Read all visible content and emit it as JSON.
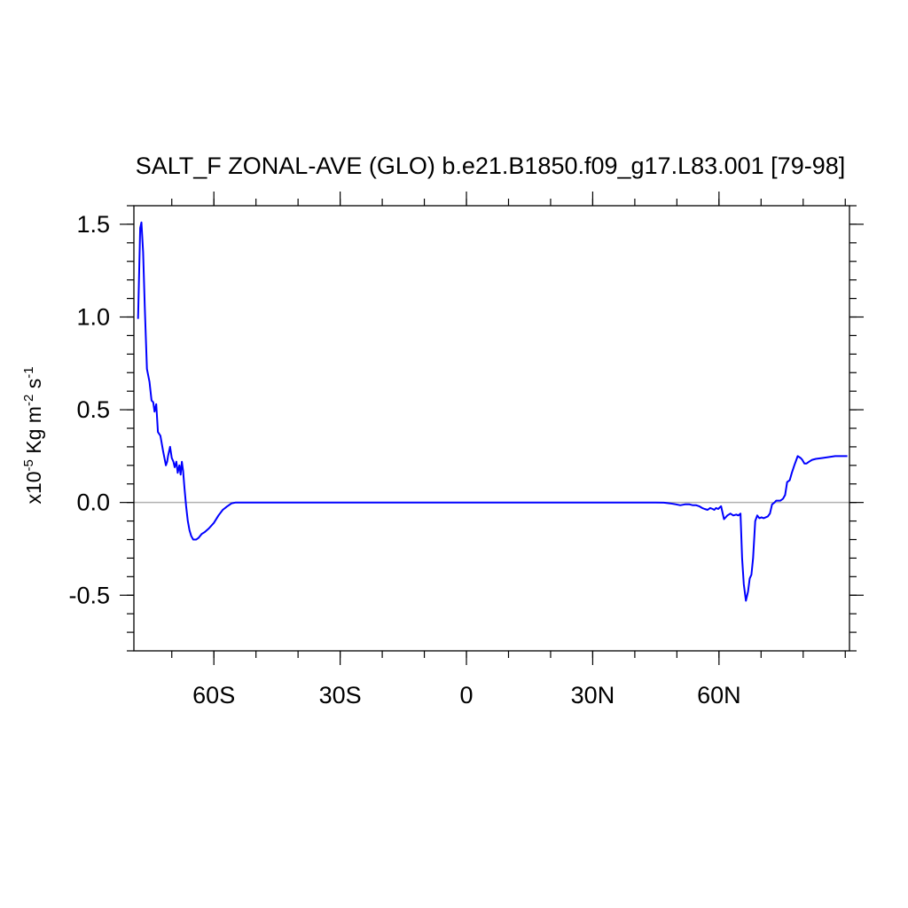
{
  "chart_data": {
    "type": "line",
    "title": "SALT_F ZONAL-AVE (GLO) b.e21.B1850.f09_g17.L83.001 [79-98]",
    "ylabel": {
      "base": "x10",
      "exp": "-5",
      "unit_a": " Kg m",
      "unit_a_exp": "-2",
      "unit_b": " s",
      "unit_b_exp": "-1"
    },
    "xlim": [
      -79,
      91
    ],
    "ylim": [
      -0.8,
      1.6
    ],
    "x_ticks": [
      {
        "value": -60,
        "label": "60S"
      },
      {
        "value": -30,
        "label": "30S"
      },
      {
        "value": 0,
        "label": "0"
      },
      {
        "value": 30,
        "label": "30N"
      },
      {
        "value": 60,
        "label": "60N"
      }
    ],
    "x_minor_step": 10,
    "y_ticks": [
      {
        "value": 1.5,
        "label": "1.5"
      },
      {
        "value": 1.0,
        "label": "1.0"
      },
      {
        "value": 0.5,
        "label": "0.5"
      },
      {
        "value": 0.0,
        "label": "0.0"
      },
      {
        "value": -0.5,
        "label": "-0.5"
      }
    ],
    "y_minor_step": 0.1,
    "zero_line": true,
    "grid": false,
    "series": [
      {
        "color": "#0000ff",
        "x": [
          -78.0,
          -77.5,
          -77.2,
          -76.8,
          -76.4,
          -75.9,
          -75.3,
          -74.8,
          -74.4,
          -74.1,
          -73.7,
          -73.3,
          -72.7,
          -72.1,
          -71.4,
          -71.1,
          -70.9,
          -70.4,
          -70.0,
          -69.6,
          -69.3,
          -68.9,
          -68.6,
          -68.2,
          -67.9,
          -67.6,
          -67.3,
          -67.0,
          -66.6,
          -66.2,
          -65.8,
          -65.4,
          -64.9,
          -64.2,
          -63.6,
          -62.9,
          -62.2,
          -61.2,
          -60.0,
          -58.9,
          -57.9,
          -56.8,
          -55.8,
          -54.8,
          -53.9,
          -52.7,
          -51.6,
          -50.0,
          -45.0,
          -30.0,
          -15.0,
          0.0,
          15.0,
          30.0,
          45.0,
          46.9,
          48.4,
          49.8,
          50.8,
          51.9,
          53.0,
          53.8,
          54.6,
          55.3,
          56.0,
          56.6,
          57.3,
          57.9,
          58.5,
          58.9,
          59.3,
          59.8,
          60.5,
          61.2,
          62.0,
          62.7,
          63.4,
          64.1,
          64.6,
          65.1,
          65.5,
          65.9,
          66.4,
          66.9,
          67.3,
          67.7,
          68.1,
          68.6,
          69.1,
          69.6,
          70.1,
          70.6,
          71.1,
          71.6,
          72.1,
          72.6,
          73.2,
          73.6,
          74.1,
          74.6,
          75.2,
          75.7,
          76.2,
          76.8,
          77.3,
          77.9,
          78.7,
          79.4,
          79.8,
          80.3,
          80.8,
          81.4,
          82.1,
          83.0,
          84.6,
          86.2,
          87.6,
          89.0,
          90.5
        ],
        "y": [
          0.99,
          1.48,
          1.51,
          1.35,
          1.05,
          0.72,
          0.65,
          0.55,
          0.54,
          0.49,
          0.53,
          0.38,
          0.36,
          0.28,
          0.2,
          0.22,
          0.25,
          0.3,
          0.24,
          0.22,
          0.19,
          0.22,
          0.16,
          0.2,
          0.15,
          0.22,
          0.17,
          0.08,
          -0.02,
          -0.1,
          -0.15,
          -0.18,
          -0.2,
          -0.2,
          -0.19,
          -0.17,
          -0.16,
          -0.14,
          -0.11,
          -0.07,
          -0.04,
          -0.02,
          -0.005,
          0.0,
          0.0,
          0.0,
          0.0,
          0.0,
          0.0,
          0.0,
          0.0,
          0.0,
          0.0,
          0.0,
          0.0,
          -0.001,
          -0.005,
          -0.01,
          -0.015,
          -0.01,
          -0.01,
          -0.015,
          -0.015,
          -0.02,
          -0.03,
          -0.035,
          -0.04,
          -0.03,
          -0.035,
          -0.04,
          -0.03,
          -0.035,
          -0.02,
          -0.09,
          -0.07,
          -0.06,
          -0.07,
          -0.065,
          -0.07,
          -0.06,
          -0.3,
          -0.44,
          -0.53,
          -0.48,
          -0.41,
          -0.39,
          -0.3,
          -0.1,
          -0.07,
          -0.085,
          -0.08,
          -0.085,
          -0.08,
          -0.075,
          -0.06,
          -0.01,
          0.0,
          0.01,
          0.01,
          0.01,
          0.02,
          0.04,
          0.11,
          0.12,
          0.16,
          0.2,
          0.25,
          0.24,
          0.23,
          0.21,
          0.21,
          0.22,
          0.23,
          0.235,
          0.24,
          0.245,
          0.25,
          0.25,
          0.25
        ]
      }
    ]
  }
}
